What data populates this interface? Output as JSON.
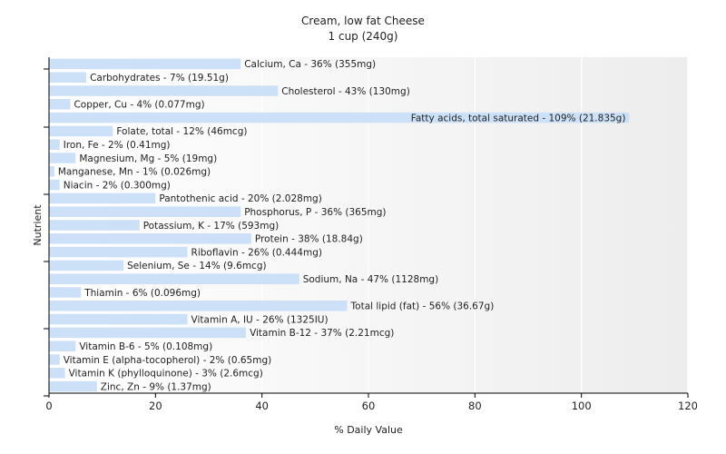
{
  "chart_data": {
    "type": "bar",
    "orientation": "horizontal",
    "title": "Cream, low fat Cheese",
    "subtitle": "1 cup (240g)",
    "xlabel": "% Daily Value",
    "ylabel": "Nutrient",
    "xlim": [
      0,
      120
    ],
    "xticks": [
      0,
      20,
      40,
      60,
      80,
      100,
      120
    ],
    "grid": true,
    "bar_color": "#cce0f8",
    "categories": [
      "Calcium, Ca",
      "Carbohydrates",
      "Cholesterol",
      "Copper, Cu",
      "Fatty acids, total saturated",
      "Folate, total",
      "Iron, Fe",
      "Magnesium, Mg",
      "Manganese, Mn",
      "Niacin",
      "Pantothenic acid",
      "Phosphorus, P",
      "Potassium, K",
      "Protein",
      "Riboflavin",
      "Selenium, Se",
      "Sodium, Na",
      "Thiamin",
      "Total lipid (fat)",
      "Vitamin A, IU",
      "Vitamin B-12",
      "Vitamin B-6",
      "Vitamin E (alpha-tocopherol)",
      "Vitamin K (phylloquinone)",
      "Zinc, Zn"
    ],
    "values": [
      36,
      7,
      43,
      4,
      109,
      12,
      2,
      5,
      1,
      2,
      20,
      36,
      17,
      38,
      26,
      14,
      47,
      6,
      56,
      26,
      37,
      5,
      2,
      3,
      9
    ],
    "labels": [
      "Calcium, Ca - 36% (355mg)",
      "Carbohydrates - 7% (19.51g)",
      "Cholesterol - 43% (130mg)",
      "Copper, Cu - 4% (0.077mg)",
      "Fatty acids, total saturated - 109% (21.835g)",
      "Folate, total - 12% (46mcg)",
      "Iron, Fe - 2% (0.41mg)",
      "Magnesium, Mg - 5% (19mg)",
      "Manganese, Mn - 1% (0.026mg)",
      "Niacin - 2% (0.300mg)",
      "Pantothenic acid - 20% (2.028mg)",
      "Phosphorus, P - 36% (365mg)",
      "Potassium, K - 17% (593mg)",
      "Protein - 38% (18.84g)",
      "Riboflavin - 26% (0.444mg)",
      "Selenium, Se - 14% (9.6mcg)",
      "Sodium, Na - 47% (1128mg)",
      "Thiamin - 6% (0.096mg)",
      "Total lipid (fat) - 56% (36.67g)",
      "Vitamin A, IU - 26% (1325IU)",
      "Vitamin B-12 - 37% (2.21mcg)",
      "Vitamin B-6 - 5% (0.108mg)",
      "Vitamin E (alpha-tocopherol) - 2% (0.65mg)",
      "Vitamin K (phylloquinone) - 3% (2.6mcg)",
      "Zinc, Zn - 9% (1.37mg)"
    ]
  }
}
